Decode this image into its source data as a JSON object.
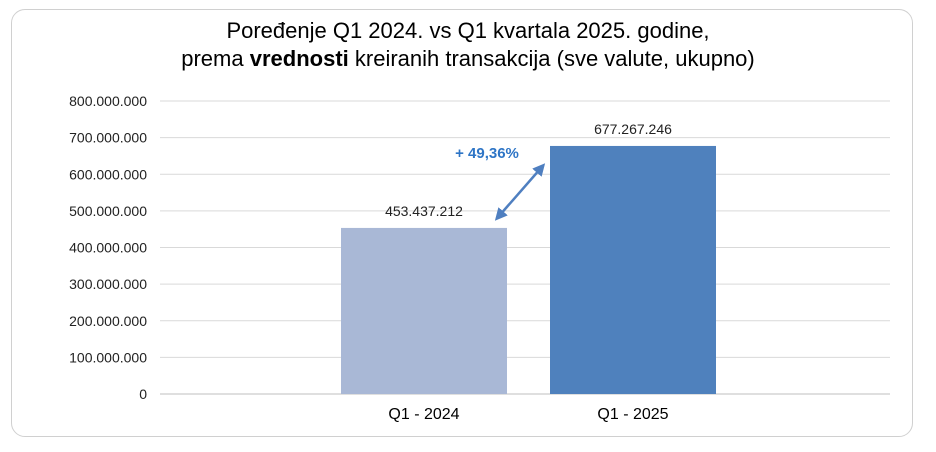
{
  "chart_data": {
    "type": "bar",
    "title_line1": "Poređenje Q1 2024. vs Q1 kvartala 2025. godine,",
    "title_line2_pre": "prema ",
    "title_line2_bold": "vrednosti",
    "title_line2_post": " kreiranih transakcija (sve valute, ukupno)",
    "categories": [
      "Q1 - 2024",
      "Q1 - 2025"
    ],
    "values": [
      453437212,
      677267246
    ],
    "value_labels": [
      "453.437.212",
      "677.267.246"
    ],
    "bar_colors": [
      "#a9b8d6",
      "#4f81bd"
    ],
    "ylim": [
      0,
      800000000
    ],
    "yticks": [
      0,
      100000000,
      200000000,
      300000000,
      400000000,
      500000000,
      600000000,
      700000000,
      800000000
    ],
    "ytick_labels": [
      "0",
      "100.000.000",
      "200.000.000",
      "300.000.000",
      "400.000.000",
      "500.000.000",
      "600.000.000",
      "700.000.000",
      "800.000.000"
    ],
    "grid": true,
    "legend": "none",
    "annotation": "+ 49,36%",
    "annotation_color": "#2e75c6",
    "xlabel": "",
    "ylabel": ""
  }
}
